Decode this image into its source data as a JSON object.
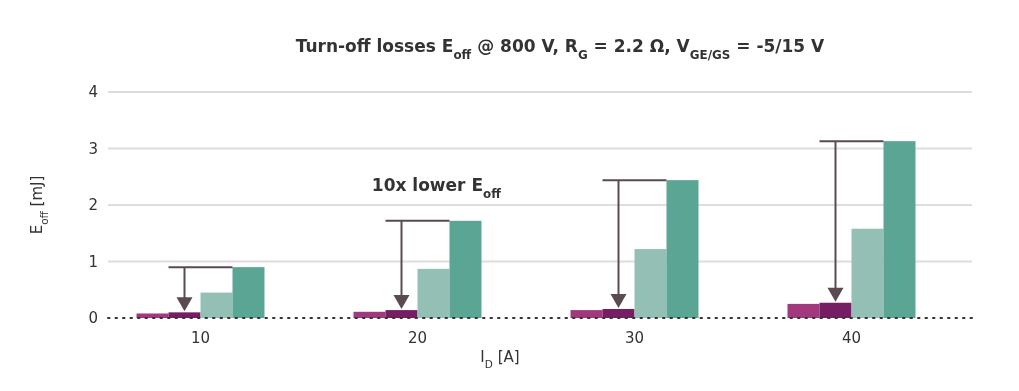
{
  "chart_data": {
    "type": "bar",
    "title": "Turn-off losses E$_{off}$ @ 800 V, R$_{G}$ = 2.2 Ω, V$_{GE/GS}$ = -5/15 V",
    "xlabel": "I$_{D}$ [A]",
    "ylabel": "E$_{off}$ [mJ]",
    "categories": [
      "10",
      "20",
      "30",
      "40"
    ],
    "series": [
      {
        "color": "#a2397e",
        "values": [
          0.08,
          0.11,
          0.14,
          0.25
        ]
      },
      {
        "color": "#761e63",
        "values": [
          0.1,
          0.14,
          0.16,
          0.27
        ]
      },
      {
        "color": "#93bfb5",
        "values": [
          0.45,
          0.87,
          1.22,
          1.58
        ]
      },
      {
        "color": "#5aa593",
        "values": [
          0.9,
          1.72,
          2.44,
          3.13
        ]
      }
    ],
    "ylim": [
      0,
      4
    ],
    "yticks": [
      0,
      1,
      2,
      3,
      4
    ],
    "grid": "y",
    "annotations": [
      "10x lower E$_{off}$"
    ]
  }
}
